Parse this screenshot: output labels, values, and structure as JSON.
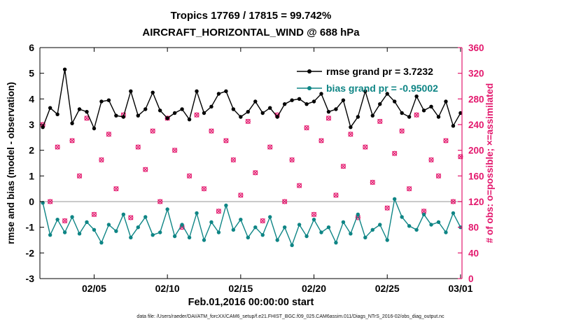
{
  "chart_data": {
    "type": "line",
    "title": "Tropics 17769 / 17815 = 99.742%",
    "subtitle": "AIRCRAFT_HORIZONTAL_WIND @ 688 hPa",
    "xlabel": "Feb.01,2016 00:00:00 start",
    "ylabel_left": "rmse and bias (model - observation)",
    "ylabel_right": "# of obs: o=possible; ×=assimilated",
    "footer": "data file: /Users/raeder/DAI/ATM_forcXX/CAM6_setup/f.e21.FHIST_BGC.f09_025.CAM6assim.011/Diags_NTrS_2016-02/obs_diag_output.nc",
    "xlim": [
      0.3,
      29.1
    ],
    "ylim_left": [
      -3,
      6
    ],
    "ylim_right": [
      0,
      360
    ],
    "yticks_left": [
      -3,
      -2,
      -1,
      0,
      1,
      2,
      3,
      4,
      5,
      6
    ],
    "yticks_right": [
      0,
      40,
      80,
      120,
      160,
      200,
      240,
      280,
      320,
      360
    ],
    "xticks": {
      "positions": [
        4,
        9,
        14,
        19,
        24,
        29
      ],
      "labels": [
        "02/05",
        "02/10",
        "02/15",
        "02/20",
        "02/25",
        "03/01"
      ]
    },
    "x_start": 0.5,
    "x_step": 0.5,
    "zero_line": 0,
    "colors": {
      "axis": "#000000",
      "right_axis": "#e3186d",
      "zero_line": "#b8b8b8",
      "background": "#ffffff"
    },
    "legend_position": "top-right-inside",
    "grid": false,
    "series": [
      {
        "name": "rmse grand pr = 3.7232",
        "color": "#000000",
        "axis": "left",
        "marker": "dot",
        "values": [
          2.9,
          3.65,
          3.4,
          5.15,
          3.05,
          3.6,
          3.5,
          2.85,
          3.9,
          3.95,
          3.35,
          3.3,
          4.3,
          3.35,
          3.6,
          4.25,
          3.55,
          3.25,
          3.45,
          3.6,
          3.2,
          4.3,
          3.45,
          3.7,
          4.2,
          4.3,
          3.6,
          3.3,
          3.5,
          3.9,
          3.45,
          3.65,
          3.3,
          3.8,
          3.95,
          4.0,
          3.8,
          3.9,
          4.2,
          3.5,
          3.6,
          3.95,
          2.9,
          3.3,
          4.3,
          3.35,
          3.8,
          4.2,
          3.9,
          3.45,
          3.3,
          4.1,
          3.55,
          3.7,
          3.3,
          3.9,
          2.95,
          3.45
        ]
      },
      {
        "name": "bias grand pr = -0.95002",
        "color": "#0e8585",
        "axis": "left",
        "marker": "dot",
        "values": [
          -0.05,
          -1.3,
          -0.7,
          -1.2,
          -0.6,
          -1.25,
          -0.8,
          -1.1,
          -1.6,
          -0.9,
          -1.15,
          -0.5,
          -1.4,
          -1.0,
          -0.6,
          -1.3,
          -1.2,
          -0.3,
          -1.35,
          -0.9,
          -1.4,
          -0.45,
          -1.5,
          -0.8,
          -1.2,
          -0.15,
          -1.1,
          -0.7,
          -1.4,
          -1.0,
          -1.3,
          -0.6,
          -1.5,
          -1.0,
          -1.7,
          -0.9,
          -1.35,
          -0.7,
          -1.2,
          -1.0,
          -1.6,
          -0.8,
          -1.25,
          -0.5,
          -1.4,
          -1.1,
          -0.9,
          -1.5,
          0.1,
          -0.6,
          -0.95,
          -1.1,
          -0.5,
          -0.9,
          -0.8,
          -1.2,
          -0.45,
          -1.0
        ]
      }
    ],
    "obs_counts": {
      "name": "# of obs (o=possible, x=assimilated)",
      "color": "#e3186d",
      "axis": "right",
      "marker": "o+x",
      "values": [
        240,
        120,
        205,
        90,
        215,
        160,
        250,
        100,
        185,
        225,
        140,
        255,
        95,
        205,
        170,
        230,
        120,
        250,
        200,
        80,
        160,
        255,
        140,
        230,
        105,
        215,
        185,
        130,
        245,
        165,
        90,
        205,
        255,
        120,
        185,
        145,
        235,
        100,
        215,
        250,
        130,
        175,
        225,
        95,
        205,
        150,
        245,
        110,
        195,
        230,
        140,
        255,
        105,
        185,
        160,
        215,
        120,
        190
      ]
    }
  }
}
